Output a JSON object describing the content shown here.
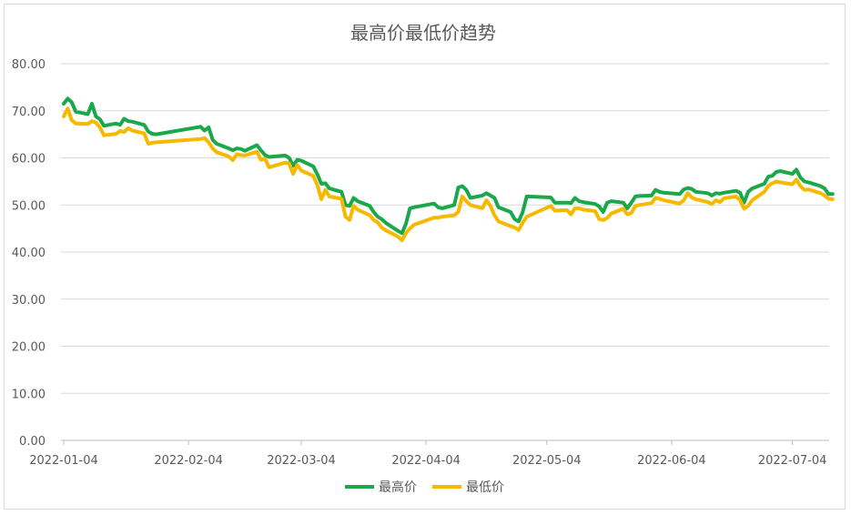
{
  "chart_data": {
    "type": "line",
    "title": "最高价最低价趋势",
    "xlabel": "",
    "ylabel": "",
    "ylim": [
      0,
      80
    ],
    "yticks": [
      "0.00",
      "10.00",
      "20.00",
      "30.00",
      "40.00",
      "50.00",
      "60.00",
      "70.00",
      "80.00"
    ],
    "xlim": [
      "2022-01-04",
      "2022-07-12"
    ],
    "xticks": [
      "2022-01-04",
      "2022-02-04",
      "2022-03-04",
      "2022-04-04",
      "2022-05-04",
      "2022-06-04",
      "2022-07-04"
    ],
    "grid": "horizontal",
    "legend": "bottom",
    "series": [
      {
        "name": "最高价",
        "color": "#1aa84b",
        "points": [
          [
            "2022-01-04",
            71.5
          ],
          [
            "2022-01-05",
            72.6
          ],
          [
            "2022-01-06",
            71.8
          ],
          [
            "2022-01-07",
            69.8
          ],
          [
            "2022-01-10",
            69.3
          ],
          [
            "2022-01-11",
            71.5
          ],
          [
            "2022-01-12",
            68.8
          ],
          [
            "2022-01-13",
            68.2
          ],
          [
            "2022-01-14",
            66.8
          ],
          [
            "2022-01-17",
            67.3
          ],
          [
            "2022-01-18",
            67.0
          ],
          [
            "2022-01-19",
            68.3
          ],
          [
            "2022-01-20",
            67.8
          ],
          [
            "2022-01-21",
            67.7
          ],
          [
            "2022-01-24",
            67.0
          ],
          [
            "2022-01-25",
            65.6
          ],
          [
            "2022-01-26",
            65.1
          ],
          [
            "2022-01-27",
            65.0
          ],
          [
            "2022-02-07",
            66.6
          ],
          [
            "2022-02-08",
            65.8
          ],
          [
            "2022-02-09",
            66.5
          ],
          [
            "2022-02-10",
            63.8
          ],
          [
            "2022-02-11",
            63.0
          ],
          [
            "2022-02-14",
            62.0
          ],
          [
            "2022-02-15",
            61.6
          ],
          [
            "2022-02-16",
            62.0
          ],
          [
            "2022-02-17",
            61.9
          ],
          [
            "2022-02-18",
            61.5
          ],
          [
            "2022-02-21",
            62.7
          ],
          [
            "2022-02-22",
            61.6
          ],
          [
            "2022-02-23",
            60.6
          ],
          [
            "2022-02-24",
            60.2
          ],
          [
            "2022-02-28",
            60.5
          ],
          [
            "2022-03-01",
            60.0
          ],
          [
            "2022-03-02",
            58.3
          ],
          [
            "2022-03-03",
            59.6
          ],
          [
            "2022-03-04",
            59.4
          ],
          [
            "2022-03-07",
            58.2
          ],
          [
            "2022-03-08",
            56.5
          ],
          [
            "2022-03-09",
            54.5
          ],
          [
            "2022-03-10",
            54.6
          ],
          [
            "2022-03-11",
            53.5
          ],
          [
            "2022-03-14",
            52.8
          ],
          [
            "2022-03-15",
            50.0
          ],
          [
            "2022-03-16",
            49.8
          ],
          [
            "2022-03-17",
            51.5
          ],
          [
            "2022-03-18",
            50.8
          ],
          [
            "2022-03-21",
            49.8
          ],
          [
            "2022-03-22",
            48.5
          ],
          [
            "2022-03-23",
            47.5
          ],
          [
            "2022-03-24",
            47.0
          ],
          [
            "2022-03-25",
            46.2
          ],
          [
            "2022-03-28",
            44.5
          ],
          [
            "2022-03-29",
            44.0
          ],
          [
            "2022-03-30",
            46.0
          ],
          [
            "2022-03-31",
            49.3
          ],
          [
            "2022-04-01",
            49.5
          ],
          [
            "2022-04-06",
            50.3
          ],
          [
            "2022-04-07",
            49.5
          ],
          [
            "2022-04-08",
            49.3
          ],
          [
            "2022-04-11",
            50.0
          ],
          [
            "2022-04-12",
            53.7
          ],
          [
            "2022-04-13",
            54.0
          ],
          [
            "2022-04-14",
            53.2
          ],
          [
            "2022-04-15",
            51.5
          ],
          [
            "2022-04-18",
            52.0
          ],
          [
            "2022-04-19",
            52.5
          ],
          [
            "2022-04-20",
            52.0
          ],
          [
            "2022-04-21",
            51.5
          ],
          [
            "2022-04-22",
            49.5
          ],
          [
            "2022-04-25",
            48.5
          ],
          [
            "2022-04-26",
            47.0
          ],
          [
            "2022-04-27",
            46.5
          ],
          [
            "2022-04-28",
            48.5
          ],
          [
            "2022-04-29",
            51.8
          ],
          [
            "2022-05-05",
            51.6
          ],
          [
            "2022-05-06",
            50.5
          ],
          [
            "2022-05-09",
            50.5
          ],
          [
            "2022-05-10",
            50.4
          ],
          [
            "2022-05-11",
            51.5
          ],
          [
            "2022-05-12",
            50.8
          ],
          [
            "2022-05-13",
            50.6
          ],
          [
            "2022-05-16",
            50.2
          ],
          [
            "2022-05-17",
            49.7
          ],
          [
            "2022-05-18",
            48.5
          ],
          [
            "2022-05-19",
            50.5
          ],
          [
            "2022-05-20",
            50.8
          ],
          [
            "2022-05-23",
            50.5
          ],
          [
            "2022-05-24",
            49.3
          ],
          [
            "2022-05-25",
            50.5
          ],
          [
            "2022-05-26",
            51.8
          ],
          [
            "2022-05-27",
            51.9
          ],
          [
            "2022-05-30",
            52.0
          ],
          [
            "2022-05-31",
            53.2
          ],
          [
            "2022-06-01",
            52.8
          ],
          [
            "2022-06-02",
            52.6
          ],
          [
            "2022-06-06",
            52.3
          ],
          [
            "2022-06-07",
            53.3
          ],
          [
            "2022-06-08",
            53.6
          ],
          [
            "2022-06-09",
            53.4
          ],
          [
            "2022-06-10",
            52.8
          ],
          [
            "2022-06-13",
            52.5
          ],
          [
            "2022-06-14",
            52.0
          ],
          [
            "2022-06-15",
            52.5
          ],
          [
            "2022-06-16",
            52.4
          ],
          [
            "2022-06-17",
            52.6
          ],
          [
            "2022-06-20",
            53.0
          ],
          [
            "2022-06-21",
            52.6
          ],
          [
            "2022-06-22",
            50.5
          ],
          [
            "2022-06-23",
            52.8
          ],
          [
            "2022-06-24",
            53.5
          ],
          [
            "2022-06-27",
            54.5
          ],
          [
            "2022-06-28",
            56.0
          ],
          [
            "2022-06-29",
            56.2
          ],
          [
            "2022-06-30",
            57.0
          ],
          [
            "2022-07-01",
            57.2
          ],
          [
            "2022-07-04",
            56.6
          ],
          [
            "2022-07-05",
            57.5
          ],
          [
            "2022-07-06",
            55.8
          ],
          [
            "2022-07-07",
            55.0
          ],
          [
            "2022-07-08",
            54.8
          ],
          [
            "2022-07-11",
            54.0
          ],
          [
            "2022-07-12",
            53.5
          ],
          [
            "2022-07-13",
            52.3
          ],
          [
            "2022-07-14",
            52.3
          ]
        ]
      },
      {
        "name": "最低价",
        "color": "#f7b900",
        "points": [
          [
            "2022-01-04",
            68.8
          ],
          [
            "2022-01-05",
            70.5
          ],
          [
            "2022-01-06",
            68.0
          ],
          [
            "2022-01-07",
            67.3
          ],
          [
            "2022-01-10",
            67.2
          ],
          [
            "2022-01-11",
            67.8
          ],
          [
            "2022-01-12",
            67.5
          ],
          [
            "2022-01-13",
            66.5
          ],
          [
            "2022-01-14",
            64.8
          ],
          [
            "2022-01-17",
            65.1
          ],
          [
            "2022-01-18",
            65.7
          ],
          [
            "2022-01-19",
            65.5
          ],
          [
            "2022-01-20",
            66.3
          ],
          [
            "2022-01-21",
            65.8
          ],
          [
            "2022-01-24",
            65.2
          ],
          [
            "2022-01-25",
            63.0
          ],
          [
            "2022-01-26",
            63.2
          ],
          [
            "2022-01-27",
            63.3
          ],
          [
            "2022-02-07",
            64.0
          ],
          [
            "2022-02-08",
            64.2
          ],
          [
            "2022-02-09",
            63.3
          ],
          [
            "2022-02-10",
            62.0
          ],
          [
            "2022-02-11",
            61.2
          ],
          [
            "2022-02-14",
            60.3
          ],
          [
            "2022-02-15",
            59.5
          ],
          [
            "2022-02-16",
            60.8
          ],
          [
            "2022-02-17",
            60.6
          ],
          [
            "2022-02-18",
            60.5
          ],
          [
            "2022-02-21",
            61.3
          ],
          [
            "2022-02-22",
            59.6
          ],
          [
            "2022-02-23",
            59.8
          ],
          [
            "2022-02-24",
            58.0
          ],
          [
            "2022-02-28",
            59.0
          ],
          [
            "2022-03-01",
            58.8
          ],
          [
            "2022-03-02",
            56.6
          ],
          [
            "2022-03-03",
            58.5
          ],
          [
            "2022-03-04",
            57.3
          ],
          [
            "2022-03-07",
            56.2
          ],
          [
            "2022-03-08",
            54.2
          ],
          [
            "2022-03-09",
            51.2
          ],
          [
            "2022-03-10",
            53.2
          ],
          [
            "2022-03-11",
            51.8
          ],
          [
            "2022-03-14",
            51.3
          ],
          [
            "2022-03-15",
            47.5
          ],
          [
            "2022-03-16",
            46.8
          ],
          [
            "2022-03-17",
            49.8
          ],
          [
            "2022-03-18",
            49.0
          ],
          [
            "2022-03-21",
            47.8
          ],
          [
            "2022-03-22",
            46.8
          ],
          [
            "2022-03-23",
            46.3
          ],
          [
            "2022-03-24",
            45.2
          ],
          [
            "2022-03-25",
            44.6
          ],
          [
            "2022-03-28",
            43.3
          ],
          [
            "2022-03-29",
            42.5
          ],
          [
            "2022-03-30",
            44.0
          ],
          [
            "2022-03-31",
            45.0
          ],
          [
            "2022-04-01",
            45.8
          ],
          [
            "2022-04-06",
            47.3
          ],
          [
            "2022-04-07",
            47.3
          ],
          [
            "2022-04-08",
            47.5
          ],
          [
            "2022-04-11",
            47.8
          ],
          [
            "2022-04-12",
            48.5
          ],
          [
            "2022-04-13",
            51.8
          ],
          [
            "2022-04-14",
            50.8
          ],
          [
            "2022-04-15",
            50.0
          ],
          [
            "2022-04-18",
            49.3
          ],
          [
            "2022-04-19",
            51.0
          ],
          [
            "2022-04-20",
            49.8
          ],
          [
            "2022-04-21",
            47.8
          ],
          [
            "2022-04-22",
            46.5
          ],
          [
            "2022-04-25",
            45.5
          ],
          [
            "2022-04-26",
            45.2
          ],
          [
            "2022-04-27",
            44.7
          ],
          [
            "2022-04-28",
            46.2
          ],
          [
            "2022-04-29",
            47.5
          ],
          [
            "2022-05-05",
            49.8
          ],
          [
            "2022-05-06",
            48.8
          ],
          [
            "2022-05-09",
            48.9
          ],
          [
            "2022-05-10",
            48.0
          ],
          [
            "2022-05-11",
            49.3
          ],
          [
            "2022-05-12",
            49.3
          ],
          [
            "2022-05-13",
            49.0
          ],
          [
            "2022-05-16",
            48.7
          ],
          [
            "2022-05-17",
            47.0
          ],
          [
            "2022-05-18",
            46.8
          ],
          [
            "2022-05-19",
            47.2
          ],
          [
            "2022-05-20",
            48.2
          ],
          [
            "2022-05-23",
            49.2
          ],
          [
            "2022-05-24",
            48.0
          ],
          [
            "2022-05-25",
            48.3
          ],
          [
            "2022-05-26",
            49.8
          ],
          [
            "2022-05-27",
            50.0
          ],
          [
            "2022-05-30",
            50.4
          ],
          [
            "2022-05-31",
            51.5
          ],
          [
            "2022-06-01",
            51.3
          ],
          [
            "2022-06-02",
            51.0
          ],
          [
            "2022-06-06",
            50.3
          ],
          [
            "2022-06-07",
            51.0
          ],
          [
            "2022-06-08",
            52.5
          ],
          [
            "2022-06-09",
            51.6
          ],
          [
            "2022-06-10",
            51.2
          ],
          [
            "2022-06-13",
            50.6
          ],
          [
            "2022-06-14",
            50.2
          ],
          [
            "2022-06-15",
            51.0
          ],
          [
            "2022-06-16",
            50.6
          ],
          [
            "2022-06-17",
            51.4
          ],
          [
            "2022-06-20",
            51.8
          ],
          [
            "2022-06-21",
            51.0
          ],
          [
            "2022-06-22",
            49.2
          ],
          [
            "2022-06-23",
            49.8
          ],
          [
            "2022-06-24",
            51.0
          ],
          [
            "2022-06-27",
            52.8
          ],
          [
            "2022-06-28",
            54.0
          ],
          [
            "2022-06-29",
            54.6
          ],
          [
            "2022-06-30",
            55.0
          ],
          [
            "2022-07-01",
            54.8
          ],
          [
            "2022-07-04",
            54.4
          ],
          [
            "2022-07-05",
            55.4
          ],
          [
            "2022-07-06",
            54.0
          ],
          [
            "2022-07-07",
            53.2
          ],
          [
            "2022-07-08",
            53.3
          ],
          [
            "2022-07-11",
            52.5
          ],
          [
            "2022-07-12",
            52.0
          ],
          [
            "2022-07-13",
            51.3
          ],
          [
            "2022-07-14",
            51.2
          ]
        ]
      }
    ]
  }
}
